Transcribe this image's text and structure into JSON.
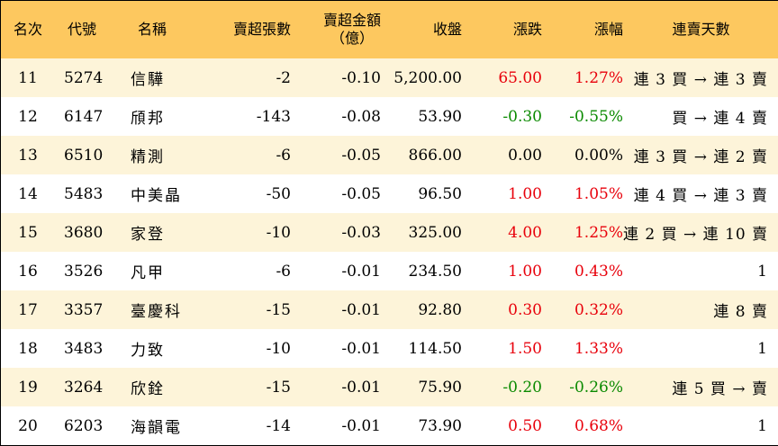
{
  "colors": {
    "header_bg": "#fdc85f",
    "odd_row_bg": "#fdf4d9",
    "even_row_bg": "#ffffff",
    "up": "#e8000b",
    "down": "#0a8a00",
    "border": "#000000"
  },
  "headers": {
    "rank": "名次",
    "code": "代號",
    "name": "名稱",
    "net_sell_volume": "賣超張數",
    "net_sell_amount_line1": "賣超金額",
    "net_sell_amount_line2": "（億）",
    "close": "收盤",
    "change": "漲跌",
    "change_pct": "漲幅",
    "streak": "連賣天數"
  },
  "rows": [
    {
      "rank": "11",
      "code": "5274",
      "name": "信驊",
      "volume": "-2",
      "amount": "-0.10",
      "close": "5,200.00",
      "change": "65.00",
      "change_pct": "1.27%",
      "direction": "up",
      "streak": "連 3 買 → 連 3 賣"
    },
    {
      "rank": "12",
      "code": "6147",
      "name": "頎邦",
      "volume": "-143",
      "amount": "-0.08",
      "close": "53.90",
      "change": "-0.30",
      "change_pct": "-0.55%",
      "direction": "down",
      "streak": "買 → 連 4 賣"
    },
    {
      "rank": "13",
      "code": "6510",
      "name": "精測",
      "volume": "-6",
      "amount": "-0.05",
      "close": "866.00",
      "change": "0.00",
      "change_pct": "0.00%",
      "direction": "flat",
      "streak": "連 3 買 → 連 2 賣"
    },
    {
      "rank": "14",
      "code": "5483",
      "name": "中美晶",
      "volume": "-50",
      "amount": "-0.05",
      "close": "96.50",
      "change": "1.00",
      "change_pct": "1.05%",
      "direction": "up",
      "streak": "連 4 買 → 連 3 賣"
    },
    {
      "rank": "15",
      "code": "3680",
      "name": "家登",
      "volume": "-10",
      "amount": "-0.03",
      "close": "325.00",
      "change": "4.00",
      "change_pct": "1.25%",
      "direction": "up",
      "streak": "連 2 買 → 連 10 賣"
    },
    {
      "rank": "16",
      "code": "3526",
      "name": "凡甲",
      "volume": "-6",
      "amount": "-0.01",
      "close": "234.50",
      "change": "1.00",
      "change_pct": "0.43%",
      "direction": "up",
      "streak": "1"
    },
    {
      "rank": "17",
      "code": "3357",
      "name": "臺慶科",
      "volume": "-15",
      "amount": "-0.01",
      "close": "92.80",
      "change": "0.30",
      "change_pct": "0.32%",
      "direction": "up",
      "streak": "連 8 賣"
    },
    {
      "rank": "18",
      "code": "3483",
      "name": "力致",
      "volume": "-10",
      "amount": "-0.01",
      "close": "114.50",
      "change": "1.50",
      "change_pct": "1.33%",
      "direction": "up",
      "streak": "1"
    },
    {
      "rank": "19",
      "code": "3264",
      "name": "欣銓",
      "volume": "-15",
      "amount": "-0.01",
      "close": "75.90",
      "change": "-0.20",
      "change_pct": "-0.26%",
      "direction": "down",
      "streak": "連 5 買 → 賣"
    },
    {
      "rank": "20",
      "code": "6203",
      "name": "海韻電",
      "volume": "-14",
      "amount": "-0.01",
      "close": "73.90",
      "change": "0.50",
      "change_pct": "0.68%",
      "direction": "up",
      "streak": "1"
    }
  ]
}
